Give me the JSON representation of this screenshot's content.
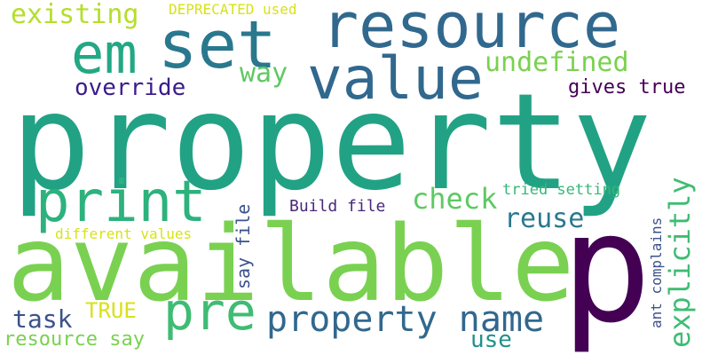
{
  "cloud": {
    "words": [
      {
        "text": "property",
        "color": "#22a284"
      },
      {
        "text": "available",
        "color": "#7ad151"
      },
      {
        "text": "p",
        "color": "#440154"
      },
      {
        "text": "resource",
        "color": "#31688e"
      },
      {
        "text": "set",
        "color": "#2a788e"
      },
      {
        "text": "value",
        "color": "#31688e"
      },
      {
        "text": "em",
        "color": "#22a884"
      },
      {
        "text": "print",
        "color": "#2db27d"
      },
      {
        "text": "pre",
        "color": "#3fbc73"
      },
      {
        "text": "property name",
        "color": "#31688e"
      },
      {
        "text": "existing",
        "color": "#b5de2b"
      },
      {
        "text": "DEPRECATED used",
        "color": "#d8e219"
      },
      {
        "text": "undefined",
        "color": "#7ad151"
      },
      {
        "text": "override",
        "color": "#3b1c8c"
      },
      {
        "text": "way",
        "color": "#5ec962"
      },
      {
        "text": "gives true",
        "color": "#440154"
      },
      {
        "text": "check",
        "color": "#5ec962"
      },
      {
        "text": "reuse",
        "color": "#2a788e"
      },
      {
        "text": "tried setting",
        "color": "#35b779"
      },
      {
        "text": "explicitly",
        "color": "#3fbc73"
      },
      {
        "text": "Build file",
        "color": "#482878"
      },
      {
        "text": "say file",
        "color": "#3b528b"
      },
      {
        "text": "different values",
        "color": "#d8e219"
      },
      {
        "text": "ant complains",
        "color": "#3b528b"
      },
      {
        "text": "TRUE",
        "color": "#d8e219"
      },
      {
        "text": "task",
        "color": "#3b528b"
      },
      {
        "text": "use",
        "color": "#21918c"
      },
      {
        "text": "resource say",
        "color": "#7ad151"
      }
    ]
  }
}
